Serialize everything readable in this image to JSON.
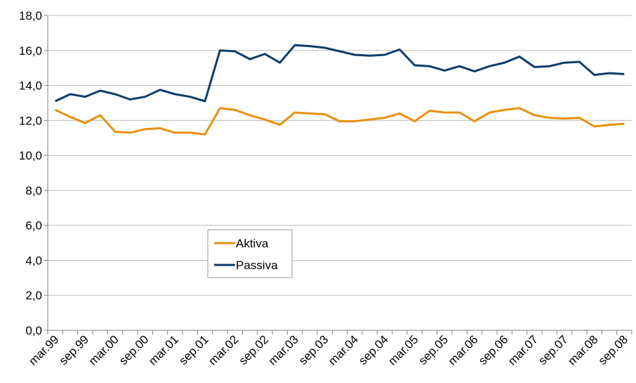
{
  "chart_data": {
    "type": "line",
    "categories": [
      "mar.99",
      null,
      "sep.99",
      null,
      "mar.00",
      null,
      "sep.00",
      null,
      "mar.01",
      null,
      "sep.01",
      null,
      "mar.02",
      null,
      "sep.02",
      null,
      "mar.03",
      null,
      "sep.03",
      null,
      "mar.04",
      null,
      "sep.04",
      null,
      "mar.05",
      null,
      "sep.05",
      null,
      "mar.06",
      null,
      "sep.06",
      null,
      "mar.07",
      null,
      "sep.07",
      null,
      "mar.08",
      null,
      "sep.08"
    ],
    "series": [
      {
        "name": "Aktiva",
        "color": "#e8900f",
        "values": [
          12.6,
          12.2,
          11.85,
          12.3,
          11.35,
          11.3,
          11.5,
          11.55,
          11.3,
          11.3,
          11.2,
          12.7,
          12.6,
          12.3,
          12.05,
          11.75,
          12.45,
          12.4,
          12.35,
          11.95,
          11.95,
          12.05,
          12.15,
          12.4,
          11.95,
          12.55,
          12.45,
          12.45,
          11.95,
          12.45,
          12.6,
          12.7,
          12.3,
          12.15,
          12.1,
          12.15,
          11.65,
          11.75,
          11.8
        ]
      },
      {
        "name": "Passiva",
        "color": "#0c3d6c",
        "values": [
          13.1,
          13.5,
          13.35,
          13.7,
          13.5,
          13.2,
          13.35,
          13.75,
          13.5,
          13.35,
          13.1,
          16.0,
          15.95,
          15.5,
          15.8,
          15.3,
          16.3,
          16.25,
          16.15,
          15.95,
          15.75,
          15.7,
          15.75,
          16.05,
          15.15,
          15.1,
          14.85,
          15.1,
          14.8,
          15.1,
          15.3,
          15.65,
          15.05,
          15.1,
          15.3,
          15.35,
          14.6,
          14.7,
          14.65
        ]
      }
    ],
    "ylim": [
      0,
      18
    ],
    "yticks": [
      {
        "value": 0,
        "label": "0,0"
      },
      {
        "value": 2,
        "label": "2,0"
      },
      {
        "value": 4,
        "label": "4,0"
      },
      {
        "value": 6,
        "label": "6,0"
      },
      {
        "value": 8,
        "label": "8,0"
      },
      {
        "value": 10,
        "label": "10,0"
      },
      {
        "value": 12,
        "label": "12,0"
      },
      {
        "value": 14,
        "label": "14,0"
      },
      {
        "value": 16,
        "label": "16,0"
      },
      {
        "value": 18,
        "label": "18,0"
      }
    ],
    "grid": true
  }
}
